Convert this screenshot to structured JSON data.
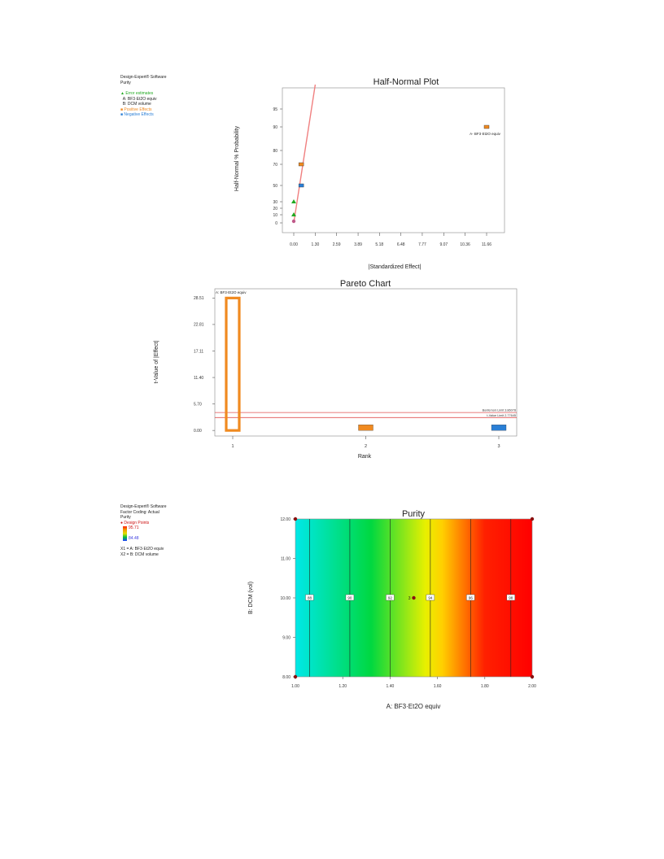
{
  "panel1": {
    "software": "Design-Expert® Software",
    "response": "Purity",
    "legend": [
      {
        "label": "Error estimates",
        "color": "#22aa22",
        "marker": "triangle"
      },
      {
        "label": "A:  BF3·Et2O equiv",
        "color": "#333333",
        "marker": "none"
      },
      {
        "label": "B: DCM volume",
        "color": "#333333",
        "marker": "none"
      },
      {
        "label": "Positive Effects",
        "color": "#f08a20",
        "marker": "square"
      },
      {
        "label": "Negative Effects",
        "color": "#2a7fd6",
        "marker": "square"
      }
    ]
  },
  "panel3": {
    "software": "Design-Expert® Software",
    "factor_coding": "Factor Coding: Actual",
    "response": "Purity",
    "design_points_label": "Design Points",
    "high": "95.71",
    "low": "84.48",
    "x1": "X1 = A:  BF3·Et2O equiv",
    "x2": "X2 = B: DCM volume"
  },
  "chart_data": [
    {
      "type": "scatter",
      "title": "Half-Normal Plot",
      "xlabel": "|Standardized Effect|",
      "ylabel": "Half-Normal % Probability",
      "xlim": [
        -0.5,
        12.5
      ],
      "xticks": [
        "0.00",
        "1.30",
        "2.59",
        "3.89",
        "5.18",
        "6.48",
        "7.77",
        "9.07",
        "10.36",
        "11.66"
      ],
      "yticks": [
        "0",
        "10",
        "20",
        "30",
        "50",
        "70",
        "80",
        "90",
        "95"
      ],
      "points": [
        {
          "x": 0.0,
          "y": 2,
          "kind": "error",
          "color": "#c05a8a",
          "shape": "circle"
        },
        {
          "x": 0.0,
          "y": 10,
          "kind": "error",
          "color": "#22aa22",
          "shape": "triangle"
        },
        {
          "x": 0.0,
          "y": 30,
          "kind": "error",
          "color": "#22aa22",
          "shape": "triangle"
        },
        {
          "x": 0.45,
          "y": 50,
          "kind": "negative",
          "color": "#2a7fd6",
          "shape": "square"
        },
        {
          "x": 0.45,
          "y": 70,
          "kind": "positive",
          "color": "#f08a20",
          "shape": "square"
        },
        {
          "x": 11.66,
          "y": 90,
          "kind": "positive",
          "color": "#f08a20",
          "shape": "square",
          "label": "A- BF3·Et2O equiv"
        }
      ],
      "fit_line": {
        "x": [
          0.0,
          1.3
        ],
        "y": [
          0,
          99
        ],
        "color": "#f08080"
      }
    },
    {
      "type": "bar",
      "title": "Pareto Chart",
      "xlabel": "Rank",
      "ylabel": "t-Value of |Effect|",
      "categories": [
        "1",
        "2",
        "3"
      ],
      "values": [
        28.51,
        1.1,
        0.9
      ],
      "colors": [
        "#f08a20",
        "#f08a20",
        "#2a7fd6"
      ],
      "hollow": [
        true,
        false,
        false
      ],
      "bar_labels": [
        "A:  BF3·Et2O equiv",
        "",
        ""
      ],
      "ylim": [
        -1.2,
        30.5
      ],
      "yticks": [
        "0.00",
        "5.70",
        "11.40",
        "17.11",
        "22.81",
        "28.51"
      ],
      "reference_lines": [
        {
          "label": "Bonferroni Limit 3.86078",
          "value": 3.86078,
          "color": "#e05050"
        },
        {
          "label": "t-Value Limit 2.77645",
          "value": 2.77645,
          "color": "#e05050"
        }
      ]
    },
    {
      "type": "heatmap",
      "title": "Purity",
      "xlabel": "A: BF3·Et2O equiv",
      "ylabel": "B: DCM (vol)",
      "xlim": [
        1.0,
        2.0
      ],
      "ylim": [
        8.0,
        12.0
      ],
      "xticks": [
        "1.00",
        "1.20",
        "1.40",
        "1.60",
        "1.80",
        "2.00"
      ],
      "yticks": [
        "8.00",
        "9.00",
        "10.00",
        "11.00",
        "12.00"
      ],
      "contours": [
        {
          "level": "88",
          "x": 1.06
        },
        {
          "level": "90",
          "x": 1.23
        },
        {
          "level": "92",
          "x": 1.4
        },
        {
          "level": "94",
          "x": 1.57
        },
        {
          "level": "96",
          "x": 1.74
        },
        {
          "level": "98",
          "x": 1.91
        }
      ],
      "design_points": [
        {
          "x": 1.0,
          "y": 8.0
        },
        {
          "x": 2.0,
          "y": 8.0
        },
        {
          "x": 1.0,
          "y": 12.0
        },
        {
          "x": 2.0,
          "y": 12.0
        },
        {
          "x": 1.5,
          "y": 10.0,
          "label": "3"
        }
      ],
      "gradient": [
        "#00e8e8",
        "#00d840",
        "#e8f000",
        "#ffd000",
        "#ff2000",
        "#ff0000"
      ]
    }
  ]
}
